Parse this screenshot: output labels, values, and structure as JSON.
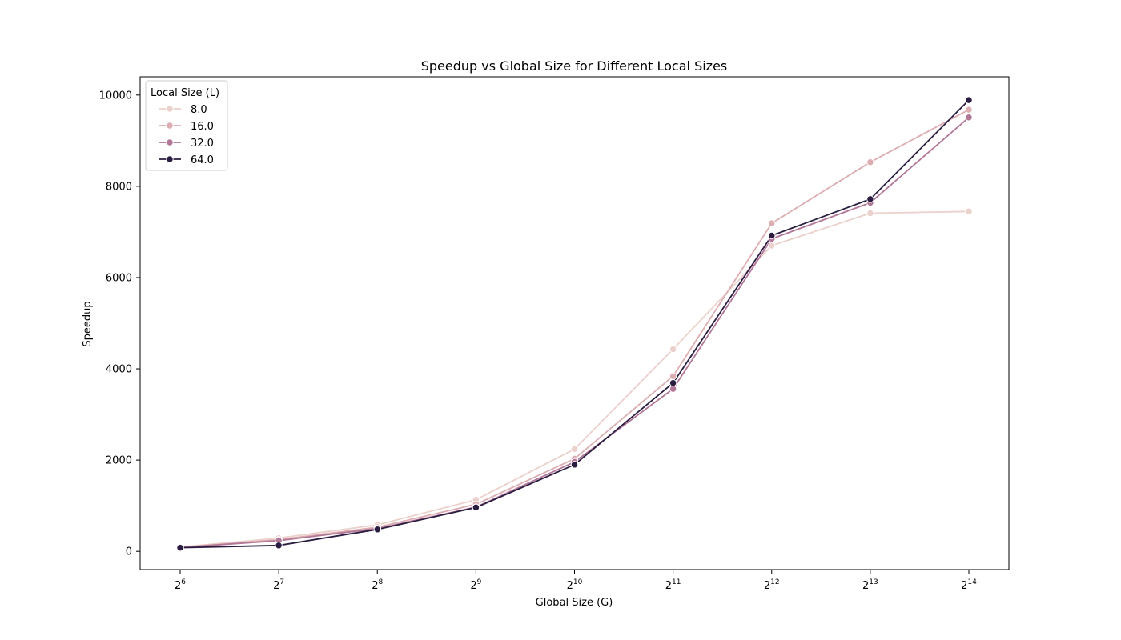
{
  "chart_data": {
    "type": "line",
    "title": "Speedup vs Global Size for Different Local Sizes",
    "xlabel": "Global Size (G)",
    "ylabel": "Speedup",
    "x_scale": "log2",
    "x": [
      64,
      128,
      256,
      512,
      1024,
      2048,
      4096,
      8192,
      16384
    ],
    "x_tick_labels": [
      {
        "base": "2",
        "exp": "6"
      },
      {
        "base": "2",
        "exp": "7"
      },
      {
        "base": "2",
        "exp": "8"
      },
      {
        "base": "2",
        "exp": "9"
      },
      {
        "base": "2",
        "exp": "10"
      },
      {
        "base": "2",
        "exp": "11"
      },
      {
        "base": "2",
        "exp": "12"
      },
      {
        "base": "2",
        "exp": "13"
      },
      {
        "base": "2",
        "exp": "14"
      }
    ],
    "ylim": [
      -400,
      10400
    ],
    "y_ticks": [
      0,
      2000,
      4000,
      6000,
      8000,
      10000
    ],
    "y_tick_labels": [
      "0",
      "2000",
      "4000",
      "6000",
      "8000",
      "10000"
    ],
    "grid": false,
    "legend": {
      "title": "Local Size (L)",
      "position": "upper-left"
    },
    "series": [
      {
        "name": "8.0",
        "color": "#ebd1cc",
        "values": [
          95,
          290,
          580,
          1130,
          2240,
          4430,
          6700,
          7410,
          7450
        ]
      },
      {
        "name": "16.0",
        "color": "#dcadb1",
        "values": [
          90,
          255,
          530,
          1030,
          2030,
          3840,
          7190,
          8530,
          9680
        ]
      },
      {
        "name": "32.0",
        "color": "#b27697",
        "values": [
          85,
          235,
          500,
          970,
          1960,
          3560,
          6850,
          7640,
          9510
        ]
      },
      {
        "name": "64.0",
        "color": "#2b1d41",
        "values": [
          80,
          130,
          480,
          960,
          1900,
          3690,
          6920,
          7720,
          9890
        ]
      }
    ]
  }
}
